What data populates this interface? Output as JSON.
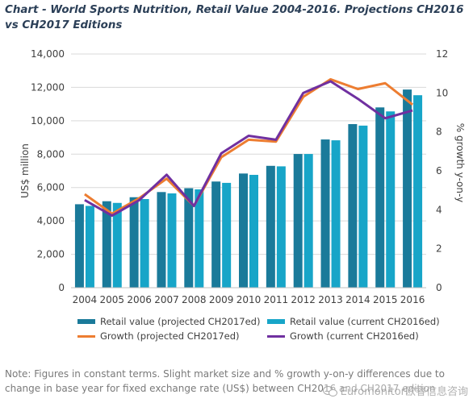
{
  "title": "Chart - World Sports Nutrition, Retail Value 2004-2016. Projections CH2016 vs CH2017 Editions",
  "note": "Note: Figures in constant terms. Slight market size and % growth y-on-y differences due to change in base year for fixed exchange rate (US$) between CH2016 and CH2017 edition",
  "watermark": "Euromonitor欧睿信息咨询",
  "colors": {
    "bar_projected": "#1a7a9a",
    "bar_current": "#17a5c8",
    "growth_projected": "#ed7d31",
    "growth_current": "#7030a0",
    "grid": "#d9d9d9",
    "axis_text": "#404040"
  },
  "chart_data": {
    "type": "bar",
    "categories": [
      "2004",
      "2005",
      "2006",
      "2007",
      "2008",
      "2009",
      "2010",
      "2011",
      "2012",
      "2013",
      "2014",
      "2015",
      "2016"
    ],
    "ylabel": "US$ million",
    "y2label": "% growth y-on-y",
    "ylim": [
      0,
      14000
    ],
    "y2lim": [
      0,
      12
    ],
    "yticks": [
      "0",
      "2,000",
      "4,000",
      "6,000",
      "8,000",
      "10,000",
      "12,000",
      "14,000"
    ],
    "y2ticks": [
      "0",
      "2",
      "4",
      "6",
      "8",
      "10",
      "12"
    ],
    "grid": true,
    "legend_position": "bottom",
    "series": [
      {
        "name": "Retail value (projected CH2017ed)",
        "type": "bar",
        "axis": "left",
        "color": "#1a7a9a",
        "values": [
          5000,
          5180,
          5420,
          5730,
          5960,
          6360,
          6840,
          7300,
          8010,
          8880,
          9800,
          10800,
          11870
        ]
      },
      {
        "name": "Retail value (current CH2016ed)",
        "type": "bar",
        "axis": "left",
        "color": "#17a5c8",
        "values": [
          4900,
          5080,
          5310,
          5650,
          5890,
          6280,
          6760,
          7270,
          8010,
          8830,
          9710,
          10560,
          11530
        ]
      },
      {
        "name": "Growth (projected CH2017ed)",
        "type": "line",
        "axis": "right",
        "color": "#ed7d31",
        "values": [
          4.8,
          3.8,
          4.6,
          5.6,
          4.2,
          6.7,
          7.6,
          7.5,
          9.8,
          10.7,
          10.2,
          10.5,
          9.4
        ]
      },
      {
        "name": "Growth (current CH2016ed)",
        "type": "line",
        "axis": "right",
        "color": "#7030a0",
        "values": [
          4.5,
          3.7,
          4.5,
          5.8,
          4.2,
          6.9,
          7.8,
          7.6,
          10.0,
          10.6,
          9.7,
          8.7,
          9.1
        ]
      }
    ]
  }
}
